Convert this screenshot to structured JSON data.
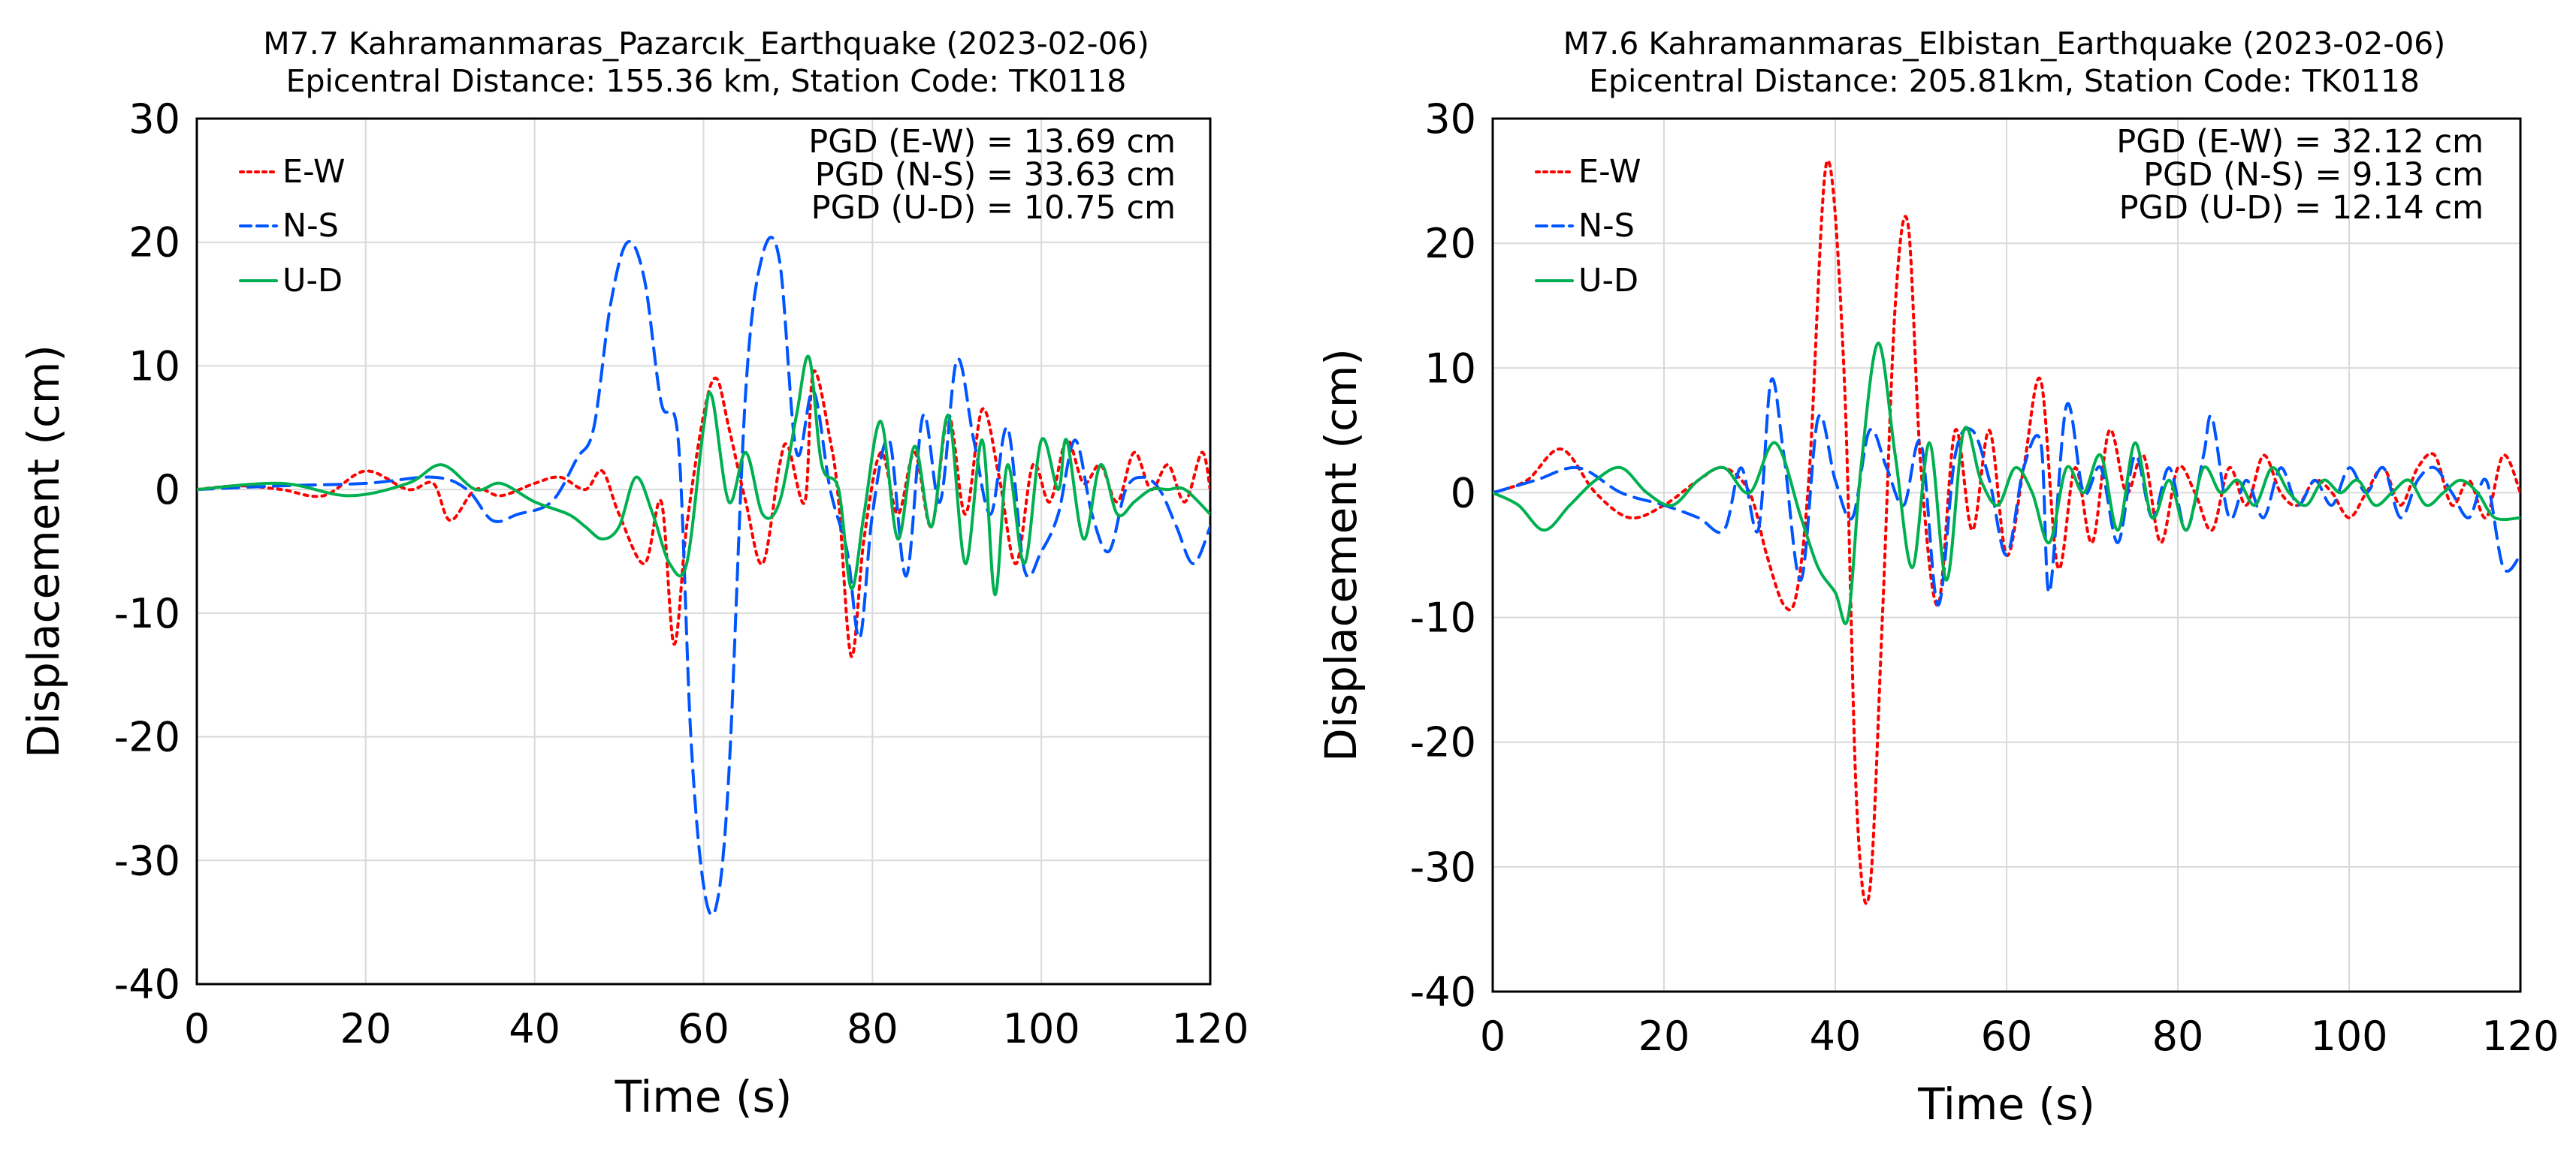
{
  "chart_data": [
    {
      "type": "line",
      "title": "M7.7 Kahramanmaras_Pazarcık_Earthquake (2023-02-06)",
      "subtitle": "Epicentral Distance: 155.36 km, Station Code: TK0118",
      "xlabel": "Time (s)",
      "ylabel": "Displacement (cm)",
      "xlim": [
        0,
        120
      ],
      "ylim": [
        -40,
        30
      ],
      "xticks": [
        "0",
        "20",
        "40",
        "60",
        "80",
        "100",
        "120"
      ],
      "yticks": [
        "30",
        "20",
        "10",
        "0",
        "-10",
        "-20",
        "-30",
        "-40"
      ],
      "grid": true,
      "legend_position": "top-left",
      "annotations": [
        "PGD (E-W) = 13.69 cm",
        "PGD (N-S) = 33.63 cm",
        "PGD (U-D) = 10.75 cm"
      ],
      "series": [
        {
          "name": "E-W",
          "color": "#ff0000",
          "style": "dotted",
          "x": [
            0,
            5,
            10,
            15,
            20,
            25,
            28,
            30,
            33,
            36,
            40,
            43,
            46,
            48,
            50,
            53,
            55,
            56.5,
            58,
            60,
            61.5,
            63,
            65,
            67,
            69,
            70,
            72,
            73,
            75,
            76,
            77.5,
            79,
            81,
            83,
            85,
            87,
            89,
            91,
            93,
            95,
            97,
            99,
            101,
            103,
            105,
            107,
            109,
            111,
            113,
            115,
            117,
            119,
            120
          ],
          "values": [
            0,
            0.3,
            0,
            -0.5,
            1.5,
            0,
            0.5,
            -2.5,
            0,
            -0.5,
            0.5,
            1,
            0,
            1.5,
            -2,
            -6,
            -1,
            -12.5,
            -3,
            6,
            9,
            5,
            -1,
            -6,
            2,
            3.5,
            -1,
            9.5,
            4,
            -1,
            -13.5,
            -4,
            3,
            -2,
            3,
            -3,
            6,
            -2,
            6.5,
            1,
            -6,
            2,
            -1,
            4,
            0.5,
            2,
            -1,
            3,
            0,
            2,
            -1,
            3,
            0
          ]
        },
        {
          "name": "N-S",
          "color": "#0055ff",
          "style": "dashed",
          "x": [
            0,
            10,
            20,
            28,
            32,
            35,
            38,
            42,
            45,
            47,
            49,
            51,
            53,
            55,
            57,
            58.5,
            60,
            61.5,
            63,
            65,
            67,
            69,
            71,
            73,
            75,
            77,
            78.5,
            80,
            82,
            84,
            86,
            88,
            90,
            92,
            94,
            96,
            98,
            100,
            102,
            104,
            106,
            108,
            110,
            112,
            114,
            116,
            118,
            120
          ],
          "values": [
            0,
            0.3,
            0.5,
            1,
            0,
            -2.5,
            -2,
            -1,
            2.5,
            5,
            15,
            20,
            17,
            7,
            4,
            -20,
            -32,
            -33.7,
            -23,
            8,
            19,
            18.5,
            3,
            8,
            0,
            -5,
            -12,
            -2,
            4,
            -7,
            6,
            -1,
            10.5,
            4,
            -2,
            5,
            -6.5,
            -5,
            -2,
            4,
            -2,
            -5,
            0,
            1,
            0,
            -3,
            -6,
            -3
          ]
        },
        {
          "name": "U-D",
          "color": "#00b050",
          "style": "solid",
          "x": [
            0,
            10,
            18,
            25,
            29,
            33,
            36,
            40,
            44,
            46,
            48,
            50,
            52,
            54,
            56,
            58,
            60,
            61,
            63,
            65,
            67,
            69,
            71,
            72.5,
            74,
            76,
            77.5,
            79,
            81,
            83,
            85,
            87,
            89,
            91,
            93,
            94.5,
            96,
            98,
            100,
            102,
            103,
            105,
            107,
            109,
            111,
            113,
            115,
            117,
            120
          ],
          "values": [
            0,
            0.5,
            -0.5,
            0.5,
            2,
            0,
            0.5,
            -1,
            -2,
            -3,
            -4,
            -3,
            1,
            -2,
            -6,
            -6,
            5,
            7.5,
            -1,
            3,
            -2,
            -1,
            6,
            10.7,
            2,
            0,
            -8,
            -2,
            5.5,
            -4,
            3.5,
            -3,
            6,
            -6,
            4,
            -8.5,
            2,
            -6,
            4,
            0,
            4,
            -4,
            2,
            -2,
            -1,
            0,
            0,
            0,
            -2
          ]
        }
      ]
    },
    {
      "type": "line",
      "title": "M7.6 Kahramanmaras_Elbistan_Earthquake (2023-02-06)",
      "subtitle": "Epicentral Distance: 205.81km, Station Code: TK0118",
      "xlabel": "Time (s)",
      "ylabel": "Displacement (cm)",
      "xlim": [
        0,
        120
      ],
      "ylim": [
        -40,
        30
      ],
      "xticks": [
        "0",
        "20",
        "40",
        "60",
        "80",
        "100",
        "120"
      ],
      "yticks": [
        "30",
        "20",
        "10",
        "0",
        "-10",
        "-20",
        "-30",
        "-40"
      ],
      "grid": true,
      "legend_position": "top-left",
      "annotations": [
        "PGD (E-W) = 32.12 cm",
        "PGD (N-S) = 9.13 cm",
        "PGD (U-D) = 12.14 cm"
      ],
      "series": [
        {
          "name": "E-W",
          "color": "#ff0000",
          "style": "dotted",
          "x": [
            0,
            4,
            8,
            12,
            16,
            20,
            24,
            27,
            30,
            32,
            34,
            35.5,
            37,
            39,
            41,
            42.5,
            44,
            45.5,
            47,
            48.5,
            50,
            52,
            54,
            56,
            58,
            60,
            62,
            64,
            66,
            68,
            70,
            72,
            74,
            76,
            78,
            80,
            82,
            84,
            86,
            88,
            90,
            92,
            94,
            96,
            98,
            100,
            102,
            104,
            106,
            108,
            110,
            112,
            114,
            116,
            118,
            120
          ],
          "values": [
            0,
            1,
            3.5,
            0,
            -2,
            -1,
            1,
            2,
            0,
            -5,
            -9,
            -8,
            2,
            26.5,
            10,
            -25,
            -32,
            -10,
            15,
            21.5,
            2,
            -9,
            5,
            -3,
            5,
            -5,
            2,
            9,
            -6,
            2,
            -4,
            5,
            0,
            3,
            -4,
            2,
            0,
            -3,
            2,
            -1,
            3,
            0,
            -1,
            1,
            0,
            -2,
            0,
            2,
            -1,
            2,
            3,
            -1,
            1,
            -2,
            3,
            0
          ]
        },
        {
          "name": "N-S",
          "color": "#0055ff",
          "style": "dashed",
          "x": [
            0,
            5,
            10,
            15,
            20,
            24,
            27,
            29,
            31,
            32.5,
            34,
            36,
            38,
            40,
            42,
            44,
            46,
            48,
            50,
            52,
            54,
            56,
            58,
            60,
            62,
            64,
            65,
            67,
            69,
            71,
            73,
            75,
            77,
            79,
            81,
            83,
            84,
            86,
            88,
            90,
            92,
            94,
            96,
            98,
            100,
            102,
            104,
            106,
            108,
            110,
            112,
            114,
            116,
            118,
            120
          ],
          "values": [
            0,
            1,
            2,
            0,
            -1,
            -2,
            -3,
            2,
            -3,
            9,
            3,
            -7,
            6,
            1,
            -2,
            5,
            2,
            -1,
            4,
            -9,
            3,
            5,
            1,
            -5,
            2,
            4,
            -8,
            7,
            0,
            2,
            -4,
            3,
            -2,
            2,
            -3,
            3,
            6,
            -2,
            1,
            -2,
            2,
            -1,
            1,
            -1,
            2,
            0,
            2,
            -2,
            1,
            2,
            0,
            -2,
            1,
            -6,
            -5
          ]
        },
        {
          "name": "U-D",
          "color": "#00b050",
          "style": "solid",
          "x": [
            0,
            3,
            6,
            9,
            12,
            15,
            18,
            21,
            24,
            27,
            30,
            33,
            36,
            38,
            40,
            41.5,
            43,
            45,
            47,
            49,
            51,
            53,
            55,
            57,
            59,
            61,
            63,
            65,
            67,
            69,
            71,
            73,
            75,
            77,
            79,
            81,
            83,
            85,
            87,
            89,
            91,
            93,
            95,
            97,
            99,
            101,
            103,
            105,
            107,
            109,
            111,
            113,
            115,
            117,
            120
          ],
          "values": [
            0,
            -1,
            -3,
            -1,
            1,
            2,
            0,
            -1,
            1,
            2,
            0,
            4,
            -2,
            -6,
            -8,
            -10,
            2,
            12,
            3,
            -6,
            4,
            -7,
            5,
            1,
            -1,
            2,
            0,
            -4,
            2,
            0,
            3,
            -3,
            4,
            -2,
            1,
            -3,
            2,
            0,
            1,
            -1,
            2,
            0,
            -1,
            1,
            0,
            1,
            -1,
            0,
            1,
            -1,
            0,
            1,
            0,
            -2,
            -2
          ]
        }
      ]
    }
  ]
}
